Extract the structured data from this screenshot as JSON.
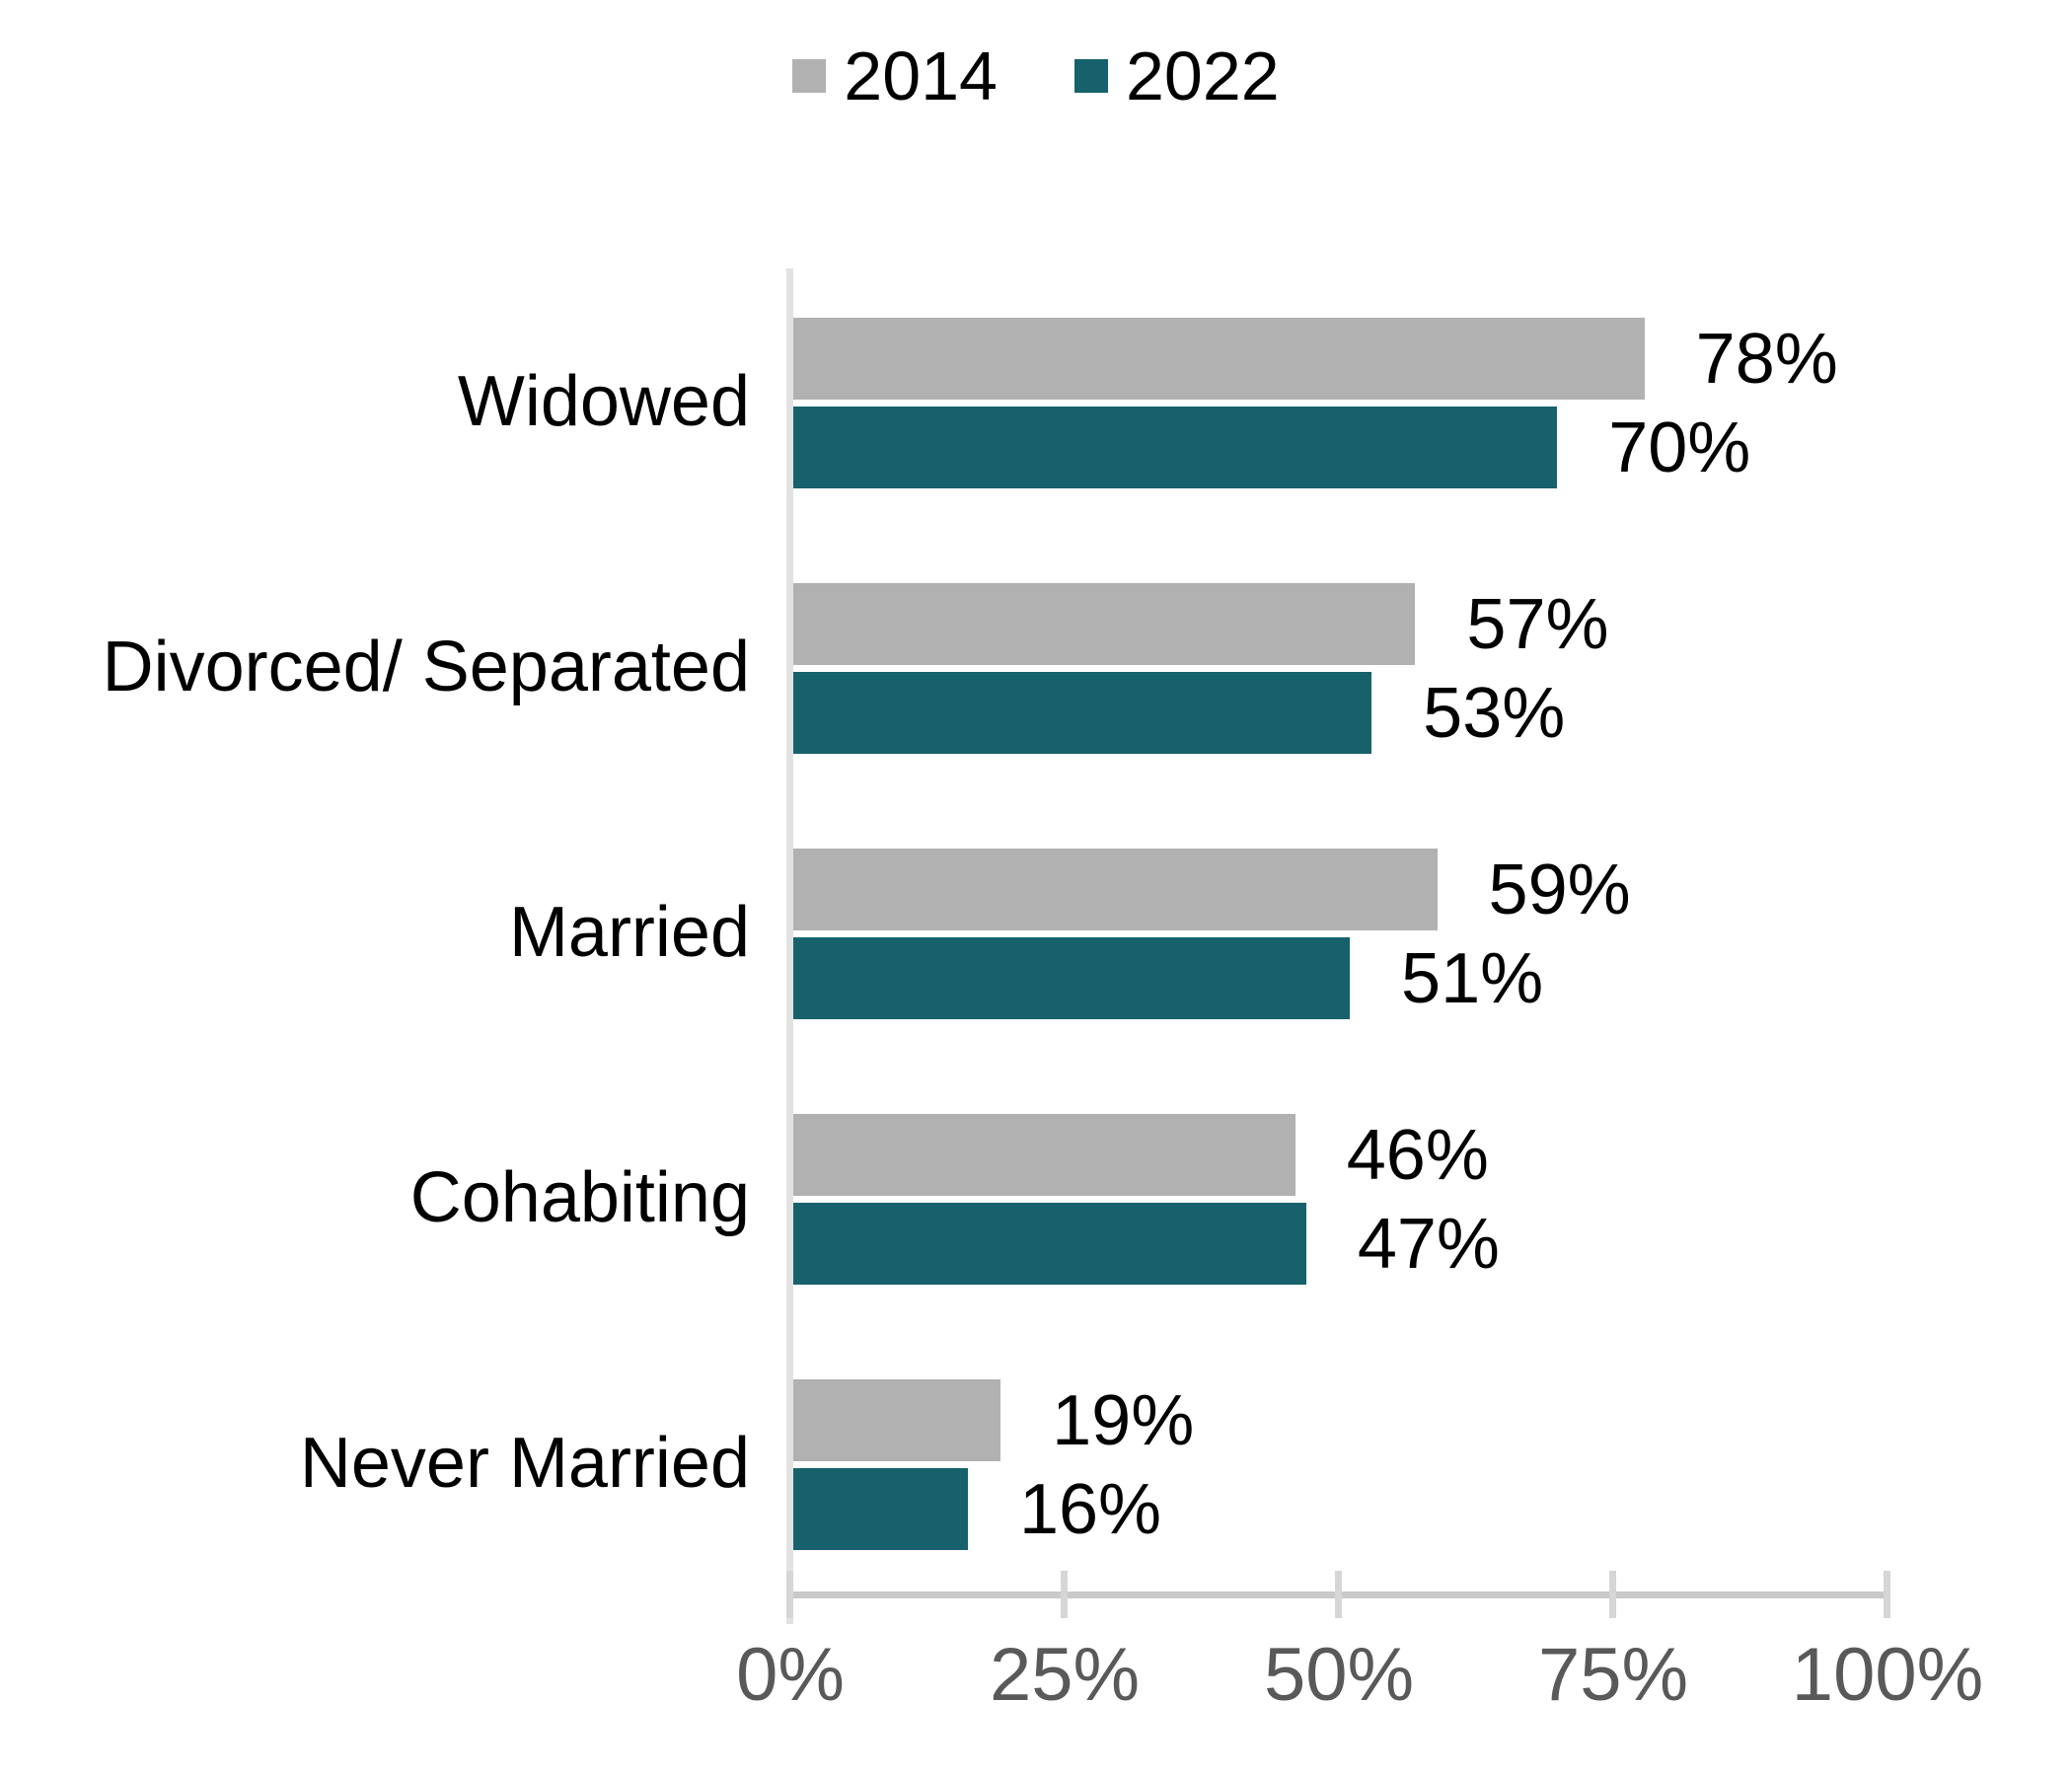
{
  "chart_data": {
    "type": "bar",
    "orientation": "horizontal",
    "title": "",
    "xlabel": "",
    "ylabel": "",
    "categories": [
      "Widowed",
      "Divorced/ Separated",
      "Married",
      "Cohabiting",
      "Never Married"
    ],
    "series": [
      {
        "name": "2014",
        "color": "#B1B1B1",
        "values": [
          78,
          57,
          59,
          46,
          19
        ]
      },
      {
        "name": "2022",
        "color": "#17616C",
        "values": [
          70,
          53,
          51,
          47,
          16
        ]
      }
    ],
    "data_labels": [
      "78%",
      "70%",
      "57%",
      "53%",
      "59%",
      "51%",
      "46%",
      "47%",
      "19%",
      "16%"
    ],
    "value_suffix": "%",
    "x_axis": {
      "min": 0,
      "max": 100,
      "ticks": [
        "0%",
        "25%",
        "50%",
        "75%",
        "100%"
      ]
    },
    "legend_position": "top-center",
    "grid": false
  },
  "colors": {
    "background": "#FFFFFF",
    "bar_2014": "#B1B1B1",
    "bar_2022": "#17616C",
    "x_axis_line": "#C9C9C9",
    "tick_line": "#D6D6D6",
    "y_axis_line": "#E2E2E2",
    "tick_label_text": "#595959",
    "label_text": "#000000"
  }
}
